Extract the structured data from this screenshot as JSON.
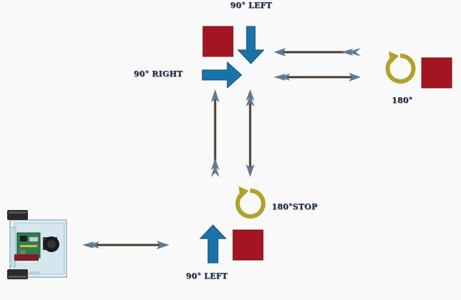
{
  "labels": {
    "top_left_turn": "90° LEFT",
    "right_turn": "90° RIGHT",
    "u_turn": "180°",
    "u_turn_stop": "180°STOP",
    "bottom_left_turn": "90° LEFT"
  },
  "colors": {
    "background": "#f9f9f9",
    "marker_square": "#a31621",
    "turn_arrow": "#1a73a8",
    "rotate_arrow": "#b0a12a",
    "path_shaft": "#4b3a2c",
    "path_fletching": "#5f7a92"
  },
  "icons": {
    "rotate": "circular-arrow-icon",
    "turn": "block-arrow-icon",
    "path": "double-dart-arrow-icon",
    "robot": "robot-car-icon"
  }
}
